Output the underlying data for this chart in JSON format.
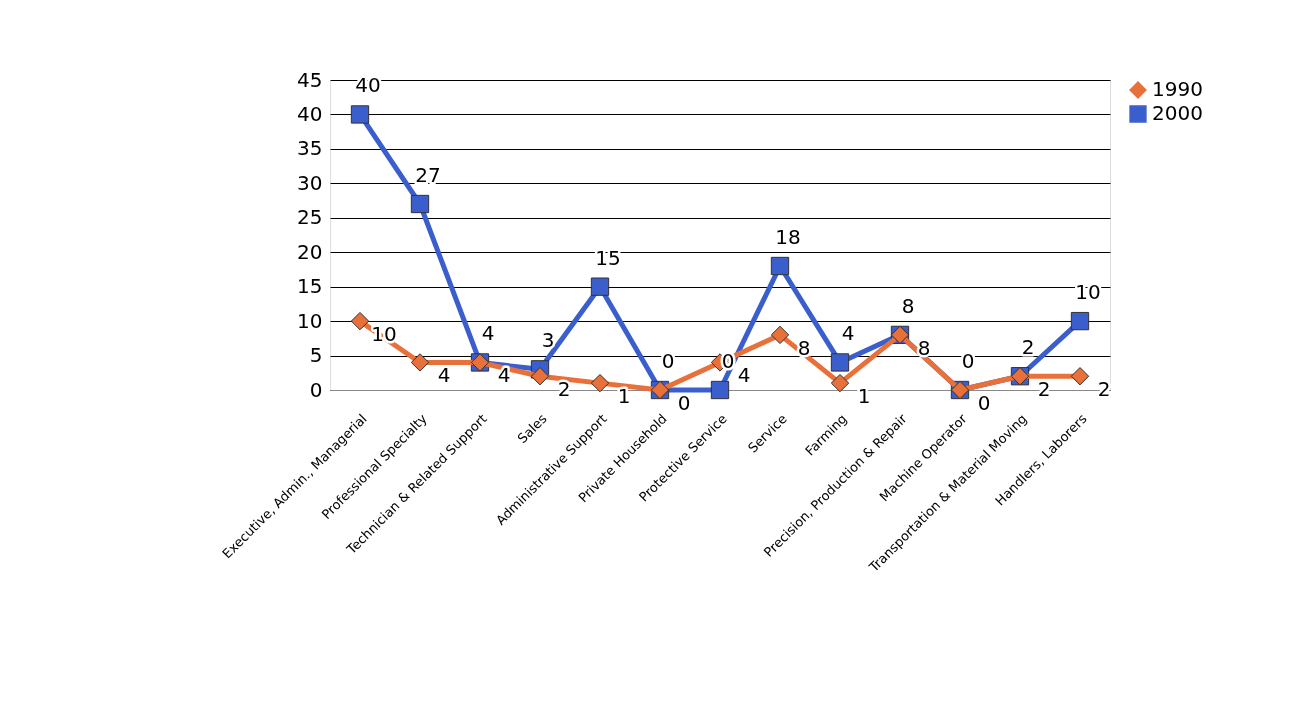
{
  "chart_data": {
    "type": "line",
    "categories": [
      "Executive, Admin., Managerial",
      "Professional Specialty",
      "Technician & Related Support",
      "Sales",
      "Administrative Support",
      "Private Household",
      "Protective Service",
      "Service",
      "Farming",
      "Precision, Production & Repair",
      "Machine Operator",
      "Transportation & Material Moving",
      "Handlers, Laborers"
    ],
    "series": [
      {
        "name": "1990",
        "color": "#e8703a",
        "marker": "diamond",
        "values": [
          10,
          4,
          4,
          2,
          1,
          0,
          4,
          8,
          1,
          8,
          0,
          2,
          2
        ]
      },
      {
        "name": "2000",
        "color": "#3a5fcd",
        "marker": "square",
        "values": [
          40,
          27,
          4,
          3,
          15,
          0,
          0,
          18,
          4,
          8,
          0,
          2,
          10
        ]
      }
    ],
    "ylim": [
      0,
      45
    ],
    "yticks": [
      0,
      5,
      10,
      15,
      20,
      25,
      30,
      35,
      40,
      45
    ],
    "grid": "y",
    "legend": "right",
    "data_labels": true,
    "line_style": "solid"
  }
}
